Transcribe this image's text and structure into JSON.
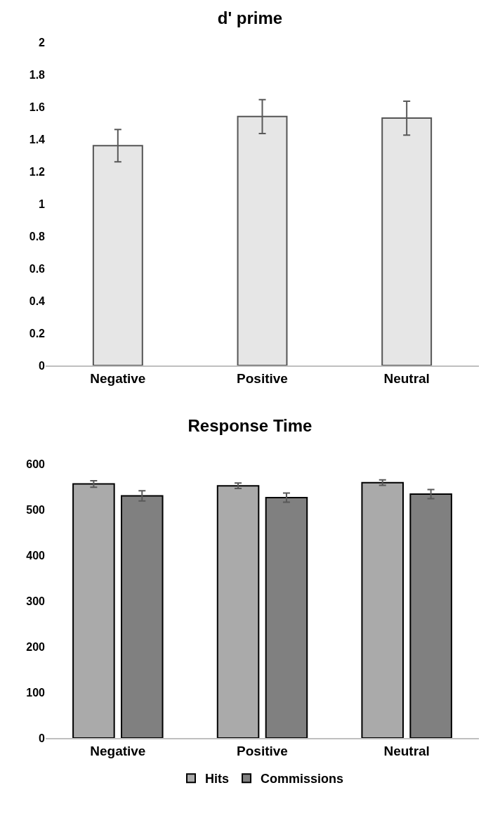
{
  "chart_data": [
    {
      "type": "bar",
      "title": "d' prime",
      "categories": [
        "Negative",
        "Positive",
        "Neutral"
      ],
      "values": [
        1.36,
        1.54,
        1.53
      ],
      "color": "#e6e6e6",
      "errors": [
        0.1,
        0.105,
        0.105
      ],
      "ylim": [
        0,
        2
      ],
      "yticks": [
        0,
        0.2,
        0.4,
        0.6,
        0.8,
        1,
        1.2,
        1.4,
        1.6,
        1.8,
        2
      ],
      "grid": false,
      "legend": false
    },
    {
      "type": "bar",
      "title": "Response Time",
      "categories": [
        "Negative",
        "Positive",
        "Neutral"
      ],
      "series": [
        {
          "name": "Hits",
          "color": "#aaaaaa",
          "values": [
            556,
            552,
            559
          ],
          "errors": [
            7,
            6,
            6
          ]
        },
        {
          "name": "Commissions",
          "color": "#808080",
          "values": [
            530,
            526,
            534
          ],
          "errors": [
            11,
            10,
            10
          ]
        }
      ],
      "ylim": [
        0,
        600
      ],
      "yticks": [
        0,
        100,
        200,
        300,
        400,
        500,
        600
      ],
      "grid": false,
      "legend": "bottom"
    }
  ]
}
